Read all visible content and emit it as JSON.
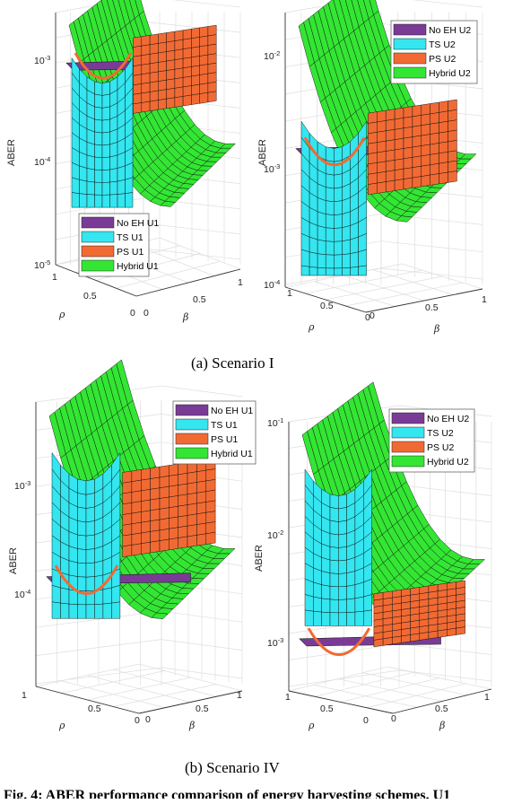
{
  "chart_data": [
    {
      "type": "surface3d",
      "panel": "Scenario I - U1",
      "zlabel": "ABER",
      "xlabel": "ρ",
      "ylabel": "β",
      "zscale": "log",
      "zlim": [
        1e-05,
        0.0013
      ],
      "xlim": [
        0,
        1
      ],
      "ylim": [
        0,
        1
      ],
      "z_ticks": [
        "10-3",
        "10-4",
        "10-5"
      ],
      "x_ticks": [
        "1",
        "0.5",
        "0"
      ],
      "y_ticks": [
        "0",
        "0.5",
        "1"
      ],
      "legend_placement": "bottom-left",
      "series": [
        {
          "name": "No EH U1",
          "color": "#7a3b96"
        },
        {
          "name": "TS U1",
          "color": "#33e6f0"
        },
        {
          "name": "PS U1",
          "color": "#f26a33"
        },
        {
          "name": "Hybrid U1",
          "color": "#33e633"
        }
      ]
    },
    {
      "type": "surface3d",
      "panel": "Scenario I - U2",
      "zlabel": "ABER",
      "xlabel": "ρ",
      "ylabel": "β",
      "zscale": "log",
      "zlim": [
        0.0001,
        0.02
      ],
      "xlim": [
        0,
        1
      ],
      "ylim": [
        0,
        1
      ],
      "z_ticks": [
        "10-2",
        "10-3",
        "10-4"
      ],
      "x_ticks": [
        "1",
        "0.5",
        "0"
      ],
      "y_ticks": [
        "0",
        "0.5",
        "1"
      ],
      "legend_placement": "top-right",
      "series": [
        {
          "name": "No EH U2",
          "color": "#7a3b96"
        },
        {
          "name": "TS U2",
          "color": "#33e6f0"
        },
        {
          "name": "PS U2",
          "color": "#f26a33"
        },
        {
          "name": "Hybrid U2",
          "color": "#33e633"
        }
      ]
    },
    {
      "type": "surface3d",
      "panel": "Scenario IV - U1",
      "zlabel": "ABER",
      "xlabel": "ρ",
      "ylabel": "β",
      "zscale": "log",
      "zlim": [
        3e-05,
        0.0015
      ],
      "xlim": [
        0,
        1
      ],
      "ylim": [
        0,
        1
      ],
      "z_ticks": [
        "10-3",
        "10-4"
      ],
      "x_ticks": [
        "1",
        "0.5",
        "0"
      ],
      "y_ticks": [
        "0",
        "0.5",
        "1"
      ],
      "legend_placement": "top-right",
      "series": [
        {
          "name": "No EH U1",
          "color": "#7a3b96"
        },
        {
          "name": "TS U1",
          "color": "#33e6f0"
        },
        {
          "name": "PS U1",
          "color": "#f26a33"
        },
        {
          "name": "Hybrid U1",
          "color": "#33e633"
        }
      ]
    },
    {
      "type": "surface3d",
      "panel": "Scenario IV - U2",
      "zlabel": "ABER",
      "xlabel": "ρ",
      "ylabel": "β",
      "zscale": "log",
      "zlim": [
        0.0005,
        0.1
      ],
      "xlim": [
        0,
        1
      ],
      "ylim": [
        0,
        1
      ],
      "z_ticks": [
        "10-1",
        "10-2",
        "10-3"
      ],
      "x_ticks": [
        "1",
        "0.5",
        "0"
      ],
      "y_ticks": [
        "0",
        "0.5",
        "1"
      ],
      "legend_placement": "top-right",
      "series": [
        {
          "name": "No EH U2",
          "color": "#7a3b96"
        },
        {
          "name": "TS U2",
          "color": "#33e6f0"
        },
        {
          "name": "PS U2",
          "color": "#f26a33"
        },
        {
          "name": "Hybrid U2",
          "color": "#33e633"
        }
      ]
    }
  ],
  "captions": {
    "a": "(a)  Scenario I",
    "b": "(b)  Scenario IV"
  },
  "cropped_caption": "Fig. 4: ABER performance comparison of energy harvesting schemes. U1"
}
